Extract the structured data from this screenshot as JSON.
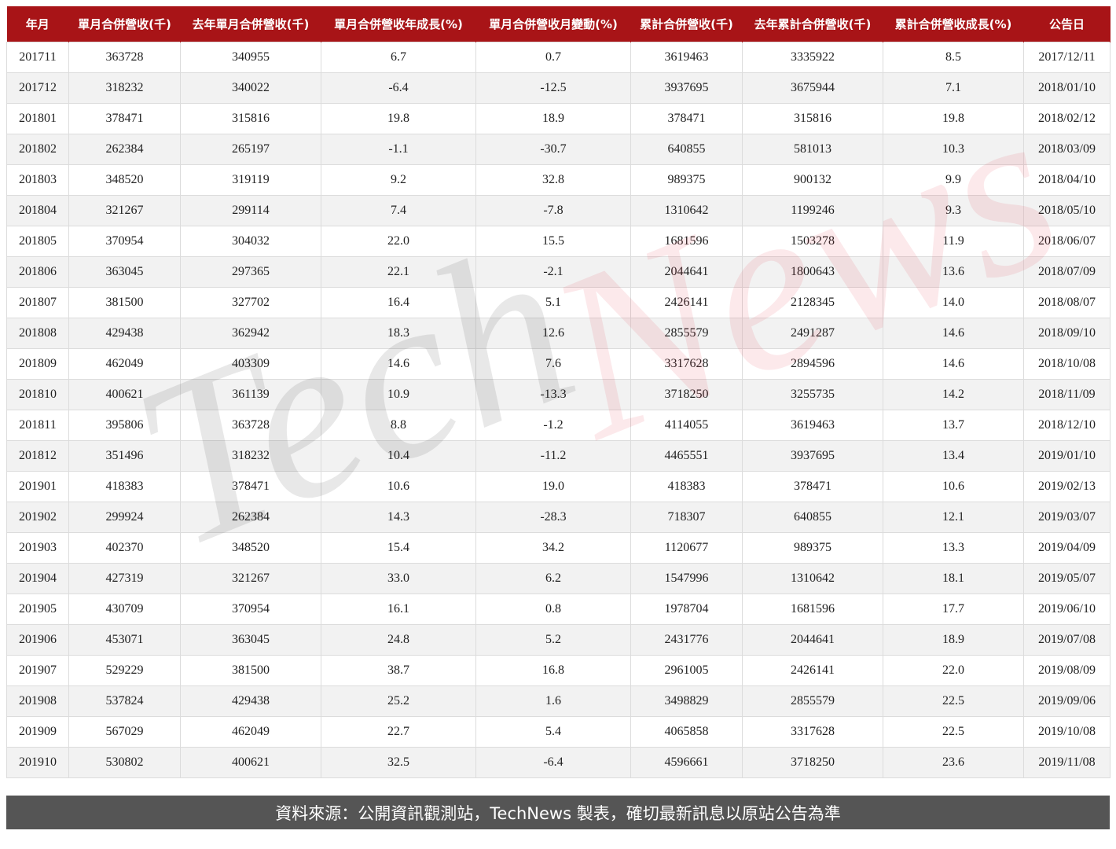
{
  "table": {
    "headers": [
      "年月",
      "單月合併營收(千)",
      "去年單月合併營收(千)",
      "單月合併營收年成長(%)",
      "單月合併營收月變動(%)",
      "累計合併營收(千)",
      "去年累計合併營收(千)",
      "累計合併營收成長(%)",
      "公告日"
    ],
    "rows": [
      [
        "201711",
        "363728",
        "340955",
        "6.7",
        "0.7",
        "3619463",
        "3335922",
        "8.5",
        "2017/12/11"
      ],
      [
        "201712",
        "318232",
        "340022",
        "-6.4",
        "-12.5",
        "3937695",
        "3675944",
        "7.1",
        "2018/01/10"
      ],
      [
        "201801",
        "378471",
        "315816",
        "19.8",
        "18.9",
        "378471",
        "315816",
        "19.8",
        "2018/02/12"
      ],
      [
        "201802",
        "262384",
        "265197",
        "-1.1",
        "-30.7",
        "640855",
        "581013",
        "10.3",
        "2018/03/09"
      ],
      [
        "201803",
        "348520",
        "319119",
        "9.2",
        "32.8",
        "989375",
        "900132",
        "9.9",
        "2018/04/10"
      ],
      [
        "201804",
        "321267",
        "299114",
        "7.4",
        "-7.8",
        "1310642",
        "1199246",
        "9.3",
        "2018/05/10"
      ],
      [
        "201805",
        "370954",
        "304032",
        "22.0",
        "15.5",
        "1681596",
        "1503278",
        "11.9",
        "2018/06/07"
      ],
      [
        "201806",
        "363045",
        "297365",
        "22.1",
        "-2.1",
        "2044641",
        "1800643",
        "13.6",
        "2018/07/09"
      ],
      [
        "201807",
        "381500",
        "327702",
        "16.4",
        "5.1",
        "2426141",
        "2128345",
        "14.0",
        "2018/08/07"
      ],
      [
        "201808",
        "429438",
        "362942",
        "18.3",
        "12.6",
        "2855579",
        "2491287",
        "14.6",
        "2018/09/10"
      ],
      [
        "201809",
        "462049",
        "403309",
        "14.6",
        "7.6",
        "3317628",
        "2894596",
        "14.6",
        "2018/10/08"
      ],
      [
        "201810",
        "400621",
        "361139",
        "10.9",
        "-13.3",
        "3718250",
        "3255735",
        "14.2",
        "2018/11/09"
      ],
      [
        "201811",
        "395806",
        "363728",
        "8.8",
        "-1.2",
        "4114055",
        "3619463",
        "13.7",
        "2018/12/10"
      ],
      [
        "201812",
        "351496",
        "318232",
        "10.4",
        "-11.2",
        "4465551",
        "3937695",
        "13.4",
        "2019/01/10"
      ],
      [
        "201901",
        "418383",
        "378471",
        "10.6",
        "19.0",
        "418383",
        "378471",
        "10.6",
        "2019/02/13"
      ],
      [
        "201902",
        "299924",
        "262384",
        "14.3",
        "-28.3",
        "718307",
        "640855",
        "12.1",
        "2019/03/07"
      ],
      [
        "201903",
        "402370",
        "348520",
        "15.4",
        "34.2",
        "1120677",
        "989375",
        "13.3",
        "2019/04/09"
      ],
      [
        "201904",
        "427319",
        "321267",
        "33.0",
        "6.2",
        "1547996",
        "1310642",
        "18.1",
        "2019/05/07"
      ],
      [
        "201905",
        "430709",
        "370954",
        "16.1",
        "0.8",
        "1978704",
        "1681596",
        "17.7",
        "2019/06/10"
      ],
      [
        "201906",
        "453071",
        "363045",
        "24.8",
        "5.2",
        "2431776",
        "2044641",
        "18.9",
        "2019/07/08"
      ],
      [
        "201907",
        "529229",
        "381500",
        "38.7",
        "16.8",
        "2961005",
        "2426141",
        "22.0",
        "2019/08/09"
      ],
      [
        "201908",
        "537824",
        "429438",
        "25.2",
        "1.6",
        "3498829",
        "2855579",
        "22.5",
        "2019/09/06"
      ],
      [
        "201909",
        "567029",
        "462049",
        "22.7",
        "5.4",
        "4065858",
        "3317628",
        "22.5",
        "2019/10/08"
      ],
      [
        "201910",
        "530802",
        "400621",
        "32.5",
        "-6.4",
        "4596661",
        "3718250",
        "23.6",
        "2019/11/08"
      ]
    ]
  },
  "watermark": {
    "part1": "Tech",
    "part2": "News"
  },
  "footer": {
    "text": "資料來源：公開資訊觀測站，TechNews 製表，確切最新訊息以原站公告為準"
  },
  "colors": {
    "header_bg": "#a81417",
    "footer_bg": "#555555",
    "alt_row": "#f2f2f2"
  }
}
